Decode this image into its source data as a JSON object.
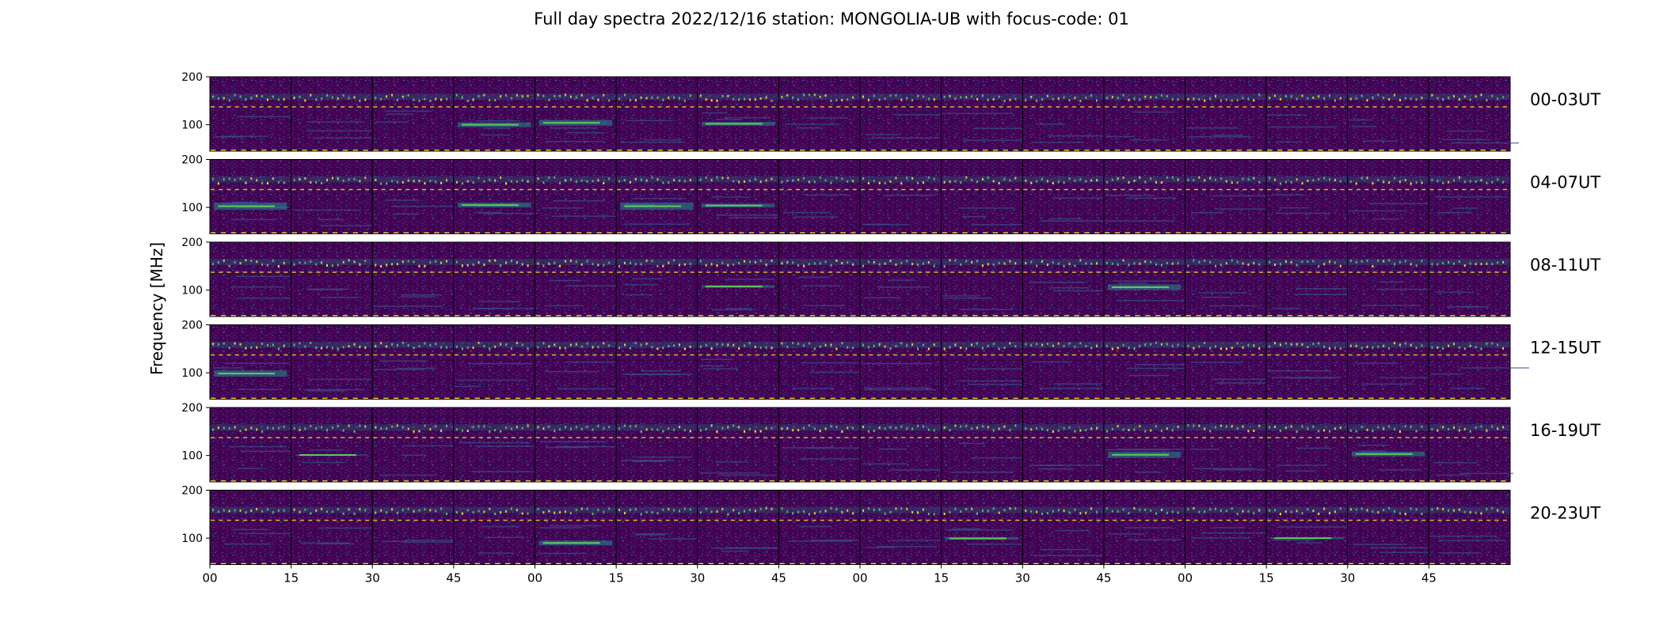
{
  "chart_data": {
    "type": "heatmap",
    "title": "Full day spectra 2022/12/16 station: MONGOLIA-UB with focus-code: 01",
    "ylabel": "Frequency [MHz]",
    "xlabel": "",
    "ylim": [
      45,
      200
    ],
    "yticks": [
      100,
      200
    ],
    "xticks": [
      "00",
      "15",
      "30",
      "45",
      "00",
      "15",
      "30",
      "45",
      "00",
      "15",
      "30",
      "45",
      "00",
      "15",
      "30",
      "45"
    ],
    "colormap": "viridis",
    "colormap_colors": [
      "#440154",
      "#3b528b",
      "#21918c",
      "#5ec962",
      "#fde725"
    ],
    "rows": [
      {
        "label": "00-03UT",
        "hours": [
          "00",
          "01",
          "02",
          "03"
        ]
      },
      {
        "label": "04-07UT",
        "hours": [
          "04",
          "05",
          "06",
          "07"
        ]
      },
      {
        "label": "08-11UT",
        "hours": [
          "08",
          "09",
          "10",
          "11"
        ]
      },
      {
        "label": "12-15UT",
        "hours": [
          "12",
          "13",
          "14",
          "15"
        ]
      },
      {
        "label": "16-19UT",
        "hours": [
          "16",
          "17",
          "18",
          "19"
        ]
      },
      {
        "label": "20-23UT",
        "hours": [
          "20",
          "21",
          "22",
          "23"
        ]
      }
    ],
    "panels_per_row": 16,
    "panel_minutes": 15,
    "persistent_bands_mhz": [
      {
        "low": 152,
        "high": 165,
        "level": "high",
        "note": "periodic dotted emission"
      },
      {
        "low": 137,
        "high": 140,
        "level": "medium",
        "note": "dashed line"
      },
      {
        "low": 45,
        "high": 48,
        "level": "max",
        "note": "dashed calibration line"
      }
    ],
    "episodic_emissions_mhz": [
      {
        "row": 0,
        "panel": 3,
        "low": 95,
        "high": 105
      },
      {
        "row": 0,
        "panel": 4,
        "low": 98,
        "high": 110
      },
      {
        "row": 0,
        "panel": 6,
        "low": 98,
        "high": 106
      },
      {
        "row": 1,
        "panel": 0,
        "low": 95,
        "high": 110
      },
      {
        "row": 1,
        "panel": 3,
        "low": 100,
        "high": 110
      },
      {
        "row": 1,
        "panel": 5,
        "low": 95,
        "high": 110
      },
      {
        "row": 1,
        "panel": 6,
        "low": 100,
        "high": 108
      },
      {
        "row": 2,
        "panel": 6,
        "low": 105,
        "high": 110
      },
      {
        "row": 2,
        "panel": 11,
        "low": 100,
        "high": 112
      },
      {
        "row": 3,
        "panel": 0,
        "low": 92,
        "high": 105
      },
      {
        "row": 4,
        "panel": 1,
        "low": 100,
        "high": 102
      },
      {
        "row": 4,
        "panel": 11,
        "low": 95,
        "high": 108
      },
      {
        "row": 4,
        "panel": 14,
        "low": 98,
        "high": 108
      },
      {
        "row": 5,
        "panel": 4,
        "low": 85,
        "high": 95
      },
      {
        "row": 5,
        "panel": 9,
        "low": 97,
        "high": 102
      },
      {
        "row": 5,
        "panel": 13,
        "low": 98,
        "high": 102
      }
    ]
  }
}
